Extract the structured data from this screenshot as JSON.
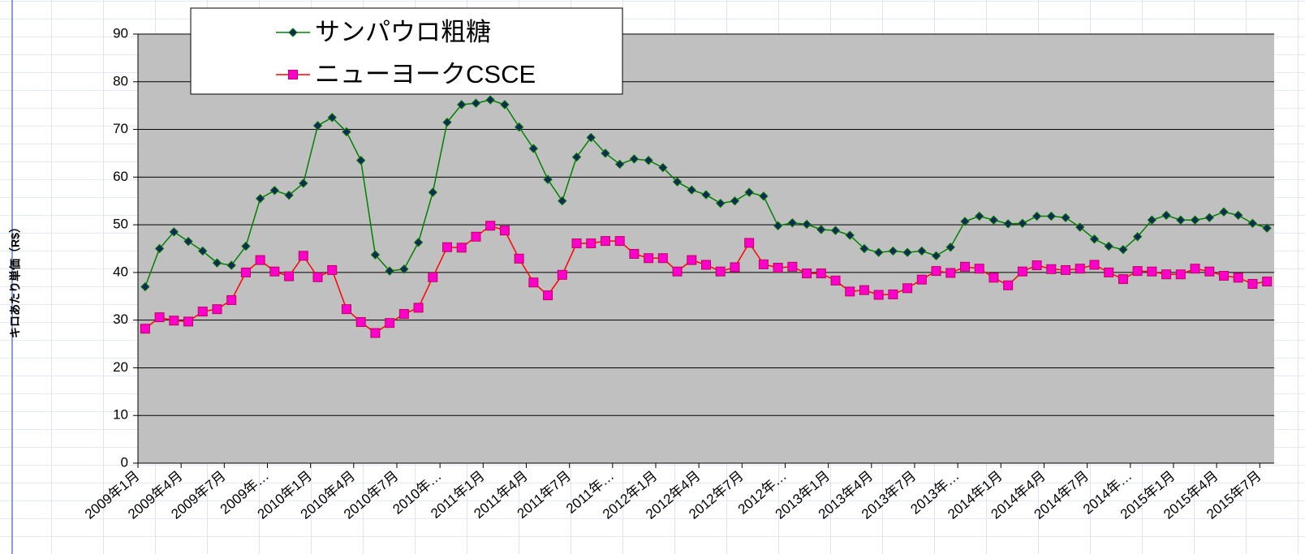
{
  "chart_data": {
    "type": "line",
    "y_label": "キロあたり単価（R$）",
    "categories": [
      "2009年1月",
      null,
      null,
      "2009年4月",
      null,
      null,
      "2009年7月",
      null,
      null,
      "2009年…",
      null,
      null,
      "2010年1月",
      null,
      null,
      "2010年4月",
      null,
      null,
      "2010年7月",
      null,
      null,
      "2010年…",
      null,
      null,
      "2011年1月",
      null,
      null,
      "2011年4月",
      null,
      null,
      "2011年7月",
      null,
      null,
      "2011年…",
      null,
      null,
      "2012年1月",
      null,
      null,
      "2012年4月",
      null,
      null,
      "2012年7月",
      null,
      null,
      "2012年…",
      null,
      null,
      "2013年1月",
      null,
      null,
      "2013年4月",
      null,
      null,
      "2013年7月",
      null,
      null,
      "2013年…",
      null,
      null,
      "2014年1月",
      null,
      null,
      "2014年4月",
      null,
      null,
      "2014年7月",
      null,
      null,
      "2014年…",
      null,
      null,
      "2015年1月",
      null,
      null,
      "2015年4月",
      null,
      null,
      "2015年7月"
    ],
    "series": [
      {
        "name": "サンパウロ粗糖",
        "color": "#008000",
        "marker": "diamond",
        "marker_color": "#14285a",
        "values": [
          37,
          45,
          48.5,
          46.5,
          44.5,
          42,
          41.5,
          45.5,
          55.5,
          57.2,
          56.2,
          58.7,
          70.8,
          72.5,
          69.5,
          63.5,
          43.7,
          40.3,
          40.7,
          46.3,
          56.8,
          71.5,
          75.2,
          75.5,
          76.2,
          75.2,
          70.5,
          66,
          59.5,
          55,
          64.2,
          68.3,
          65,
          62.7,
          63.8,
          63.5,
          62,
          59,
          57.3,
          56.3,
          54.5,
          55,
          56.8,
          56,
          49.8,
          50.4,
          50.1,
          49,
          48.8,
          47.8,
          45,
          44.2,
          44.5,
          44.2,
          44.5,
          43.5,
          45.3,
          50.7,
          51.8,
          51,
          50.2,
          50.3,
          51.8,
          51.8,
          51.5,
          49.5,
          47,
          45.5,
          44.8,
          47.5,
          51,
          52,
          51,
          51,
          51.5,
          52.7,
          52,
          50.3,
          49.3
        ]
      },
      {
        "name": "ニューヨークCSCE",
        "color": "#ff0000",
        "marker": "square",
        "marker_color": "#ff00cc",
        "values": [
          28.2,
          30.6,
          29.9,
          29.7,
          31.8,
          32.3,
          34.2,
          40,
          42.6,
          40.2,
          39.2,
          43.5,
          39,
          40.5,
          32.3,
          29.6,
          27.3,
          29.4,
          31.3,
          32.6,
          39,
          45.3,
          45.2,
          47.5,
          49.8,
          48.8,
          42.9,
          37.9,
          35.2,
          39.5,
          46.1,
          46.1,
          46.6,
          46.6,
          43.9,
          43,
          43,
          40.2,
          42.6,
          41.6,
          40.2,
          41.1,
          46.2,
          41.7,
          41,
          41.2,
          39.8,
          39.8,
          38.3,
          36,
          36.3,
          35.3,
          35.4,
          36.7,
          38.5,
          40.3,
          39.9,
          41.2,
          40.8,
          38.9,
          37.3,
          40.2,
          41.5,
          40.7,
          40.5,
          40.8,
          41.6,
          40,
          38.6,
          40.3,
          40.2,
          39.6,
          39.6,
          40.8,
          40.2,
          39.3,
          38.9,
          37.6,
          38.1
        ]
      }
    ],
    "ylim": [
      0,
      90
    ],
    "yticks": [
      0,
      10,
      20,
      30,
      40,
      50,
      60,
      70,
      80,
      90
    ],
    "grid": true,
    "legend": "top-left"
  }
}
